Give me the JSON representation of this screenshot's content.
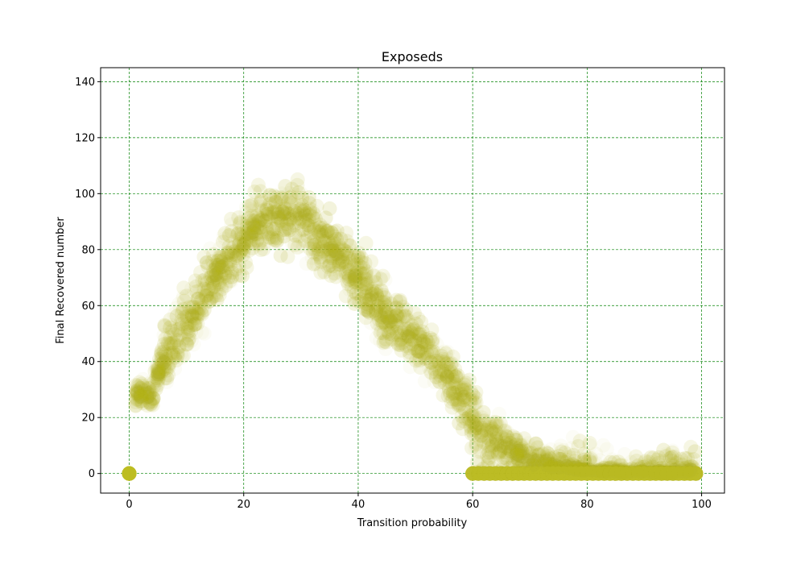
{
  "chart_data": {
    "type": "scatter",
    "title": "Exposeds",
    "xlabel": "Transition probability",
    "ylabel": "Final Recovered number",
    "xlim": [
      -5,
      104
    ],
    "ylim": [
      -7,
      145
    ],
    "xticks": [
      0,
      20,
      40,
      60,
      80,
      100
    ],
    "yticks": [
      0,
      20,
      40,
      60,
      80,
      100,
      120,
      140
    ],
    "grid": true,
    "grid_color": "#008000",
    "marker_color": "#bcbd22",
    "point_alpha": 0.04,
    "legend": "none",
    "series": [
      {
        "trend_points": [
          [
            0,
            0
          ],
          [
            1,
            28
          ],
          [
            2,
            30
          ],
          [
            3,
            28
          ],
          [
            4,
            27
          ],
          [
            5,
            36
          ],
          [
            6,
            42
          ],
          [
            7,
            45
          ],
          [
            8,
            48
          ],
          [
            10,
            54
          ],
          [
            12,
            60
          ],
          [
            14,
            66
          ],
          [
            16,
            72
          ],
          [
            18,
            78
          ],
          [
            20,
            84
          ],
          [
            22,
            88
          ],
          [
            24,
            90
          ],
          [
            26,
            91
          ],
          [
            28,
            92
          ],
          [
            30,
            91
          ],
          [
            32,
            87
          ],
          [
            34,
            83
          ],
          [
            36,
            79
          ],
          [
            38,
            75
          ],
          [
            40,
            70
          ],
          [
            42,
            64
          ],
          [
            44,
            59
          ],
          [
            46,
            54
          ],
          [
            48,
            50
          ],
          [
            50,
            47
          ],
          [
            52,
            43
          ],
          [
            54,
            39
          ],
          [
            56,
            34
          ],
          [
            58,
            28
          ],
          [
            60,
            20
          ],
          [
            62,
            15
          ],
          [
            64,
            12
          ],
          [
            66,
            10
          ],
          [
            68,
            8
          ],
          [
            70,
            6
          ],
          [
            72,
            5
          ],
          [
            74,
            4
          ],
          [
            76,
            3
          ],
          [
            78,
            2
          ],
          [
            80,
            1
          ],
          [
            84,
            0.5
          ],
          [
            88,
            0.3
          ],
          [
            92,
            0.2
          ],
          [
            96,
            0.1
          ],
          [
            99,
            0
          ]
        ],
        "zero_points_x_range": [
          60,
          99
        ],
        "origin_point": [
          0,
          0
        ]
      }
    ]
  }
}
